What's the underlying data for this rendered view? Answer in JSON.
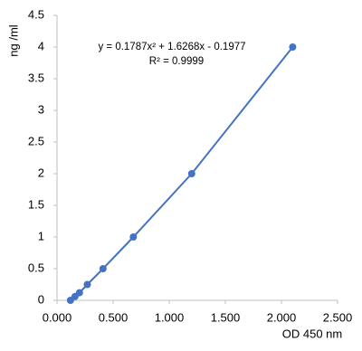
{
  "chart_data": {
    "type": "scatter",
    "x_label": "OD 450 nm",
    "y_label": "ng /ml",
    "annotations": [
      "y = 0.1787x² + 1.6268x - 0.1977",
      "R² = 0.9999"
    ],
    "series": [
      {
        "color": "#4472c4",
        "x": [
          0.12,
          0.16,
          0.2,
          0.27,
          0.41,
          0.68,
          1.2,
          2.1
        ],
        "values": [
          0,
          0.06,
          0.12,
          0.25,
          0.5,
          1,
          2,
          4
        ]
      }
    ],
    "xlim": [
      0,
      2.5
    ],
    "xticks": [
      {
        "value": 0,
        "label": "0.000"
      },
      {
        "value": 0.5,
        "label": "0.500"
      },
      {
        "value": 1,
        "label": "1.000"
      },
      {
        "value": 1.5,
        "label": "1.500"
      },
      {
        "value": 2,
        "label": "2.000"
      },
      {
        "value": 2.5,
        "label": "2.500"
      }
    ],
    "ylim": [
      0,
      4.5
    ],
    "yticks": [
      0,
      0.5,
      1,
      1.5,
      2,
      2.5,
      3,
      3.5,
      4,
      4.5
    ],
    "grid": false
  }
}
